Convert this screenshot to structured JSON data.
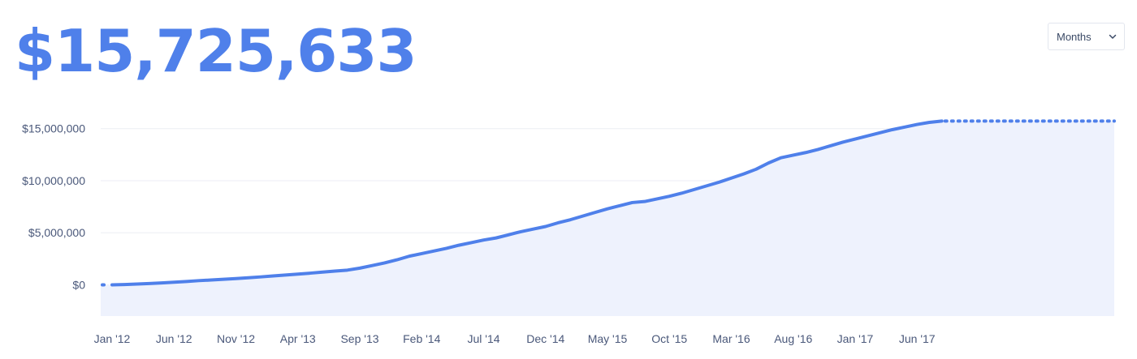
{
  "headline": {
    "value": "$15,725,633"
  },
  "period_select": {
    "selected": "Months",
    "icon": "chevron-down-icon"
  },
  "colors": {
    "accent": "#4f80ea",
    "area_fill": "#eef2fd",
    "grid": "#eceef4",
    "tick_text": "#4a587a"
  },
  "chart_data": {
    "type": "area",
    "title": "",
    "xlabel": "",
    "ylabel": "",
    "ylim": [
      -3000000,
      17000000
    ],
    "grid": true,
    "legend": "none",
    "y_ticks": [
      {
        "value": 0,
        "label": "$0"
      },
      {
        "value": 5000000,
        "label": "$5,000,000"
      },
      {
        "value": 10000000,
        "label": "$10,000,000"
      },
      {
        "value": 15000000,
        "label": "$15,000,000"
      }
    ],
    "x_ticks": [
      {
        "index": 0,
        "label": "Jan '12"
      },
      {
        "index": 5,
        "label": "Jun '12"
      },
      {
        "index": 10,
        "label": "Nov '12"
      },
      {
        "index": 15,
        "label": "Apr '13"
      },
      {
        "index": 20,
        "label": "Sep '13"
      },
      {
        "index": 25,
        "label": "Feb '14"
      },
      {
        "index": 30,
        "label": "Jul '14"
      },
      {
        "index": 35,
        "label": "Dec '14"
      },
      {
        "index": 40,
        "label": "May '15"
      },
      {
        "index": 45,
        "label": "Oct '15"
      },
      {
        "index": 50,
        "label": "Mar '16"
      },
      {
        "index": 55,
        "label": "Aug '16"
      },
      {
        "index": 60,
        "label": "Jan '17"
      },
      {
        "index": 65,
        "label": "Jun '17"
      }
    ],
    "series": [
      {
        "values": [
          0,
          30000,
          70000,
          120000,
          180000,
          250000,
          320000,
          400000,
          460000,
          530000,
          600000,
          680000,
          760000,
          850000,
          940000,
          1030000,
          1120000,
          1220000,
          1320000,
          1410000,
          1600000,
          1850000,
          2100000,
          2400000,
          2750000,
          3000000,
          3250000,
          3500000,
          3800000,
          4050000,
          4300000,
          4500000,
          4800000,
          5100000,
          5350000,
          5600000,
          5950000,
          6250000,
          6600000,
          6950000,
          7300000,
          7600000,
          7900000,
          8000000,
          8250000,
          8500000,
          8800000,
          9150000,
          9500000,
          9850000,
          10250000,
          10650000,
          11100000,
          11700000,
          12200000,
          12450000,
          12700000,
          13000000,
          13350000,
          13700000,
          14000000,
          14300000,
          14600000,
          14900000,
          15150000,
          15400000,
          15600000,
          15725633
        ]
      }
    ]
  }
}
